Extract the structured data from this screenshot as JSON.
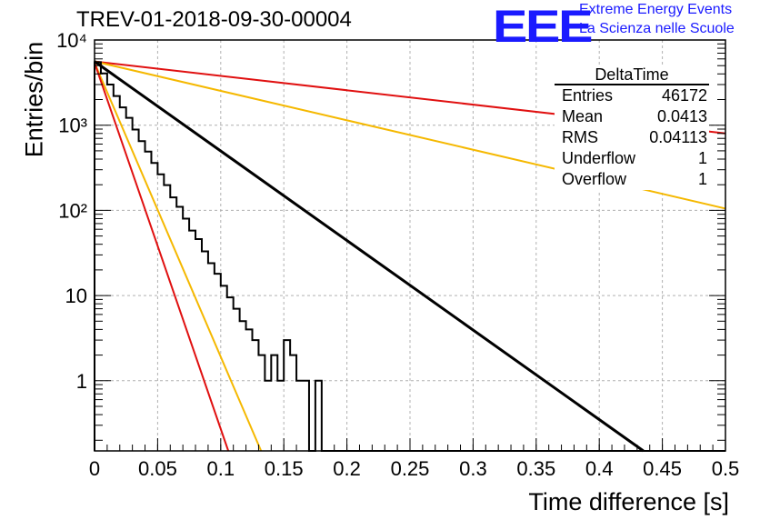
{
  "header": {
    "title": "TREV-01-2018-09-30-00004",
    "logo_text": "EEE",
    "logo_line1": "Extreme Energy Events",
    "logo_line2": "La Scienza nelle Scuole"
  },
  "stats_box": {
    "title": "DeltaTime",
    "rows": [
      {
        "label": "Entries",
        "value": "46172"
      },
      {
        "label": "Mean",
        "value": "0.0413"
      },
      {
        "label": "RMS",
        "value": "0.04113"
      },
      {
        "label": "Underflow",
        "value": "1"
      },
      {
        "label": "Overflow",
        "value": "1"
      }
    ]
  },
  "colors": {
    "histogram": "#000000",
    "fit": "#000000",
    "red_bands": "#e01010",
    "orange_bands": "#f5b800",
    "grid": "#b0b0b0"
  },
  "chart_data": {
    "type": "line",
    "title": "TREV-01-2018-09-30-00004",
    "xlabel": "Time difference [s]",
    "ylabel": "Entries/bin",
    "xlim": [
      0,
      0.5
    ],
    "ylim": [
      0.15,
      10000
    ],
    "yscale": "log",
    "grid": true,
    "x_ticks": [
      "0",
      "0.05",
      "0.1",
      "0.15",
      "0.2",
      "0.25",
      "0.3",
      "0.35",
      "0.4",
      "0.45",
      "0.5"
    ],
    "y_ticks": [
      {
        "value": 1,
        "label": "1"
      },
      {
        "value": 10,
        "label": "10"
      },
      {
        "value": 100,
        "label": "10²"
      },
      {
        "value": 1000,
        "label": "10³"
      },
      {
        "value": 10000,
        "label": "10⁴"
      }
    ],
    "series": [
      {
        "name": "DeltaTime",
        "kind": "histogram",
        "bin_width": 0.005,
        "values": [
          5500,
          4050,
          3000,
          2200,
          1620,
          1220,
          890,
          650,
          490,
          360,
          265,
          198,
          142,
          110,
          80,
          58,
          46,
          33,
          24,
          18,
          13,
          9.5,
          7,
          5,
          4,
          3,
          2,
          1,
          2,
          1,
          3,
          2,
          1,
          1,
          0,
          1,
          0,
          0,
          0,
          0,
          0,
          0,
          0,
          0,
          0,
          0,
          0,
          0,
          0,
          0,
          0,
          0,
          0,
          0,
          0,
          0,
          0,
          0,
          0,
          0,
          0,
          0,
          0,
          0,
          0,
          0,
          0,
          0,
          0,
          0,
          0,
          0,
          0,
          0,
          0,
          0,
          0,
          0,
          0,
          0,
          0,
          0,
          0,
          0,
          0,
          0,
          0,
          0,
          0,
          0,
          0,
          0,
          0,
          0,
          0,
          0,
          0,
          0,
          0,
          0
        ]
      },
      {
        "name": "",
        "kind": "fit",
        "points": [
          [
            0,
            5600
          ],
          [
            0.435,
            0.15
          ]
        ]
      },
      {
        "name": "",
        "kind": "band-red",
        "points": [
          [
            0,
            5600
          ],
          [
            0.5,
            800
          ]
        ]
      },
      {
        "name": "",
        "kind": "band-orange",
        "points": [
          [
            0,
            5600
          ],
          [
            0.5,
            105
          ]
        ]
      },
      {
        "name": "",
        "kind": "band-orange",
        "points": [
          [
            0,
            5400
          ],
          [
            0.132,
            0.15
          ]
        ]
      },
      {
        "name": "",
        "kind": "band-red",
        "points": [
          [
            0,
            5400
          ],
          [
            0.106,
            0.15
          ]
        ]
      }
    ]
  }
}
